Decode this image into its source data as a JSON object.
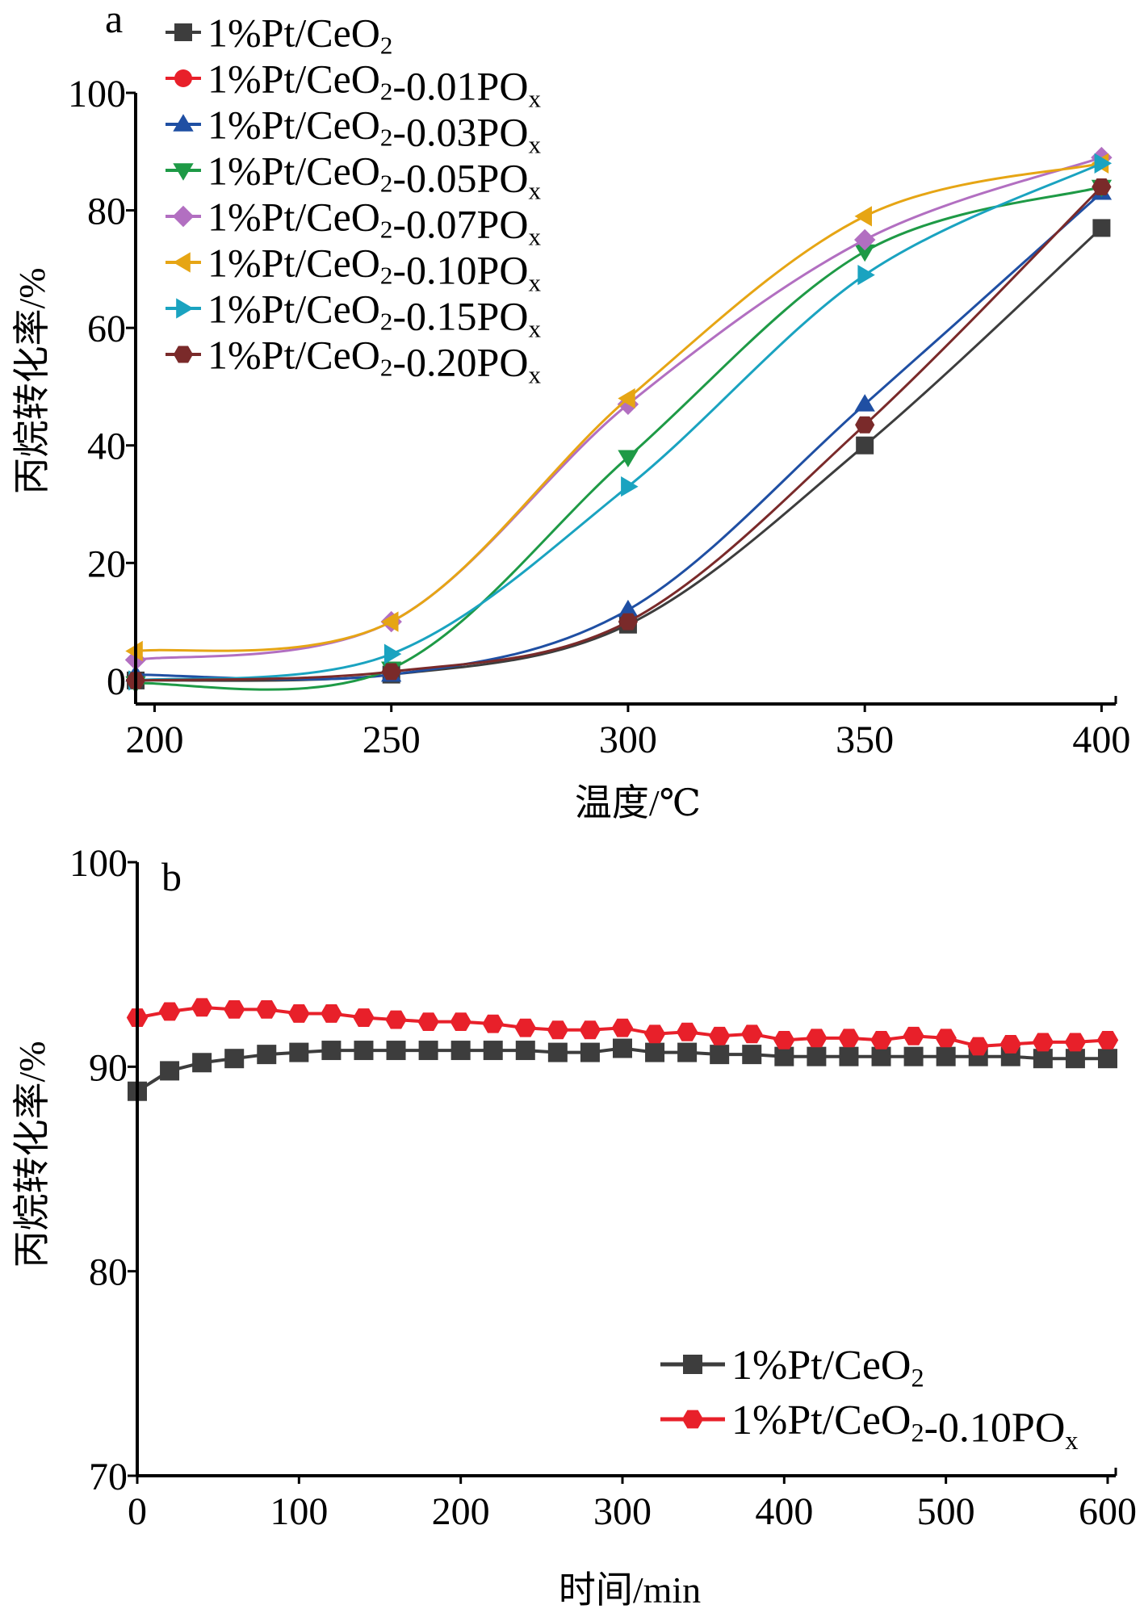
{
  "chart_data": [
    {
      "type": "line",
      "panel_label": "a",
      "xlabel": "温度/℃",
      "ylabel": "丙烷转化率/%",
      "xlim": [
        196,
        403
      ],
      "ylim": [
        -4,
        100
      ],
      "xticks": [
        200,
        250,
        300,
        350,
        400
      ],
      "yticks": [
        0,
        20,
        40,
        60,
        80,
        100
      ],
      "legend_position": "top-left",
      "x": [
        196,
        250,
        300,
        350,
        400
      ],
      "series": [
        {
          "name": "1%Pt/CeO2",
          "color": "#3d3d3d",
          "marker": "square",
          "values": [
            0,
            1,
            9.5,
            40,
            77
          ]
        },
        {
          "name": "1%Pt/CeO2-0.01POx",
          "color": "#e8202a",
          "marker": "circle",
          "values": [
            null,
            null,
            null,
            null,
            null
          ]
        },
        {
          "name": "1%Pt/CeO2-0.03POx",
          "color": "#1f4fa3",
          "marker": "triangle-up",
          "values": [
            1,
            1,
            12,
            47,
            83
          ]
        },
        {
          "name": "1%Pt/CeO2-0.05POx",
          "color": "#1e9a46",
          "marker": "triangle-down",
          "values": [
            -0.5,
            2,
            38,
            73,
            84
          ]
        },
        {
          "name": "1%Pt/CeO2-0.07POx",
          "color": "#b26fc1",
          "marker": "diamond",
          "values": [
            3.5,
            10,
            47,
            75,
            89
          ]
        },
        {
          "name": "1%Pt/CeO2-0.10POx",
          "color": "#e6a514",
          "marker": "triangle-left",
          "values": [
            5,
            10,
            48,
            79,
            88
          ]
        },
        {
          "name": "1%Pt/CeO2-0.15POx",
          "color": "#1aa3c0",
          "marker": "triangle-right",
          "values": [
            0,
            4.5,
            33,
            69,
            88
          ]
        },
        {
          "name": "1%Pt/CeO2-0.20POx",
          "color": "#7a2a2a",
          "marker": "hexagon",
          "values": [
            0,
            1.5,
            10,
            43.5,
            84
          ]
        }
      ]
    },
    {
      "type": "line",
      "panel_label": "b",
      "xlabel": "时间/min",
      "ylabel": "丙烷转化率/%",
      "xlim": [
        0,
        605
      ],
      "ylim": [
        70,
        100
      ],
      "xticks": [
        0,
        100,
        200,
        300,
        400,
        500,
        600
      ],
      "yticks": [
        70,
        80,
        90,
        100
      ],
      "legend_position": "bottom-right",
      "x": [
        0,
        20,
        40,
        60,
        80,
        100,
        120,
        140,
        160,
        180,
        200,
        220,
        240,
        260,
        280,
        300,
        320,
        340,
        360,
        380,
        400,
        420,
        440,
        460,
        480,
        500,
        520,
        540,
        560,
        580,
        600
      ],
      "series": [
        {
          "name": "1%Pt/CeO2",
          "color": "#3d3d3d",
          "marker": "square",
          "values": [
            88.8,
            89.8,
            90.2,
            90.4,
            90.6,
            90.7,
            90.8,
            90.8,
            90.8,
            90.8,
            90.8,
            90.8,
            90.8,
            90.7,
            90.7,
            90.9,
            90.7,
            90.7,
            90.6,
            90.6,
            90.5,
            90.5,
            90.5,
            90.5,
            90.5,
            90.5,
            90.5,
            90.5,
            90.4,
            90.4,
            90.4
          ]
        },
        {
          "name": "1%Pt/CeO2-0.10POx",
          "color": "#e8202a",
          "marker": "hexagon",
          "values": [
            92.4,
            92.7,
            92.9,
            92.8,
            92.8,
            92.6,
            92.6,
            92.4,
            92.3,
            92.2,
            92.2,
            92.1,
            91.9,
            91.8,
            91.8,
            91.9,
            91.6,
            91.7,
            91.5,
            91.6,
            91.3,
            91.4,
            91.4,
            91.3,
            91.5,
            91.4,
            91.0,
            91.1,
            91.2,
            91.2,
            91.3
          ]
        }
      ]
    }
  ]
}
